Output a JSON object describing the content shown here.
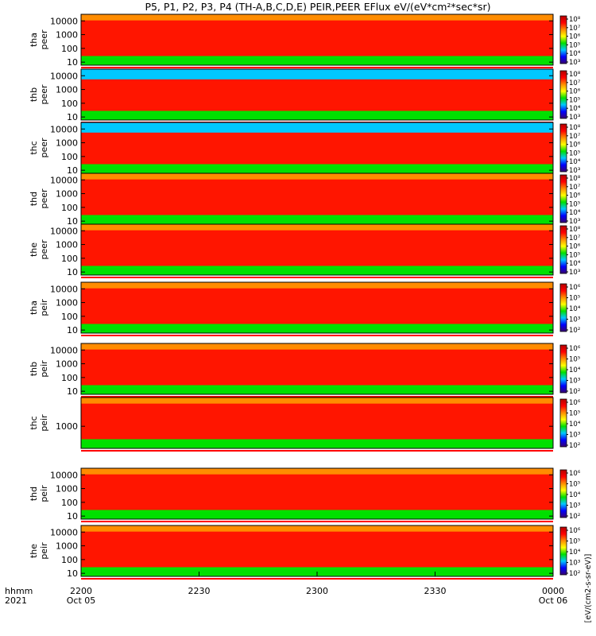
{
  "title": "P5, P1, P2, P3, P4 (TH-A,B,C,D,E) PEIR,PEER EFlux eV/(eV*cm²*sec*sr)",
  "time_axis": {
    "row_label_1": "hhmm",
    "row_label_2": "2021",
    "ticks": [
      {
        "t": 0,
        "hhmm": "2200",
        "date": "Oct 05"
      },
      {
        "t": 30,
        "hhmm": "2230",
        "date": ""
      },
      {
        "t": 60,
        "hhmm": "2300",
        "date": ""
      },
      {
        "t": 90,
        "hhmm": "2330",
        "date": ""
      },
      {
        "t": 120,
        "hhmm": "0000",
        "date": "Oct 06"
      }
    ]
  },
  "colorbar_unit_label": "[eV/(cm2-s-sr-eV)]",
  "colors": {
    "scale": [
      "#3a006f",
      "#0000ff",
      "#00c8ff",
      "#00e000",
      "#ffff00",
      "#ff8c00",
      "#ff0000",
      "#b40000"
    ],
    "fill_gap": "#ffffff",
    "strip": "#ff0000"
  },
  "chart_data": {
    "type": "heatmap",
    "x_units": "minutes from 2021-10-05 22:00 UT",
    "xlim": [
      0,
      120
    ],
    "y_scale": "log",
    "panels": [
      {
        "id": "tha_peer",
        "probe": "tha",
        "instrument": "peer",
        "ylim": [
          6,
          30000
        ],
        "yticks": [
          "10000",
          "1000",
          "100",
          "10"
        ],
        "cbar_ticks": [
          "10⁸",
          "10⁷",
          "10⁶",
          "10⁵",
          "10⁴",
          "10³"
        ],
        "level_band_low": 5.6,
        "level_band_high": 7.4,
        "top_noise": false
      },
      {
        "id": "thb_peer",
        "probe": "thb",
        "instrument": "peer",
        "ylim": [
          6,
          30000
        ],
        "yticks": [
          "10000",
          "1000",
          "100",
          "10"
        ],
        "cbar_ticks": [
          "10⁸",
          "10⁷",
          "10⁶",
          "10⁵",
          "10⁴",
          "10³"
        ],
        "level_band_low": 3.0,
        "level_band_high": 7.6,
        "top_noise": true
      },
      {
        "id": "thc_peer",
        "probe": "thc",
        "instrument": "peer",
        "ylim": [
          6,
          30000
        ],
        "yticks": [
          "10000",
          "1000",
          "100",
          "10"
        ],
        "cbar_ticks": [
          "10⁸",
          "10⁷",
          "10⁶",
          "10⁵",
          "10⁴",
          "10³"
        ],
        "level_band_low": 2.6,
        "level_band_high": 7.6,
        "top_noise": true
      },
      {
        "id": "thd_peer",
        "probe": "thd",
        "instrument": "peer",
        "ylim": [
          6,
          30000
        ],
        "yticks": [
          "10000",
          "1000",
          "100",
          "10"
        ],
        "cbar_ticks": [
          "10⁸",
          "10⁷",
          "10⁶",
          "10⁵",
          "10⁴",
          "10³"
        ],
        "level_band_low": 5.8,
        "level_band_high": 7.6,
        "top_noise": false
      },
      {
        "id": "the_peer",
        "probe": "the",
        "instrument": "peer",
        "ylim": [
          6,
          30000
        ],
        "yticks": [
          "10000",
          "1000",
          "100",
          "10"
        ],
        "cbar_ticks": [
          "10⁸",
          "10⁷",
          "10⁶",
          "10⁵",
          "10⁴",
          "10³"
        ],
        "level_band_low": 5.6,
        "level_band_high": 7.4,
        "top_noise": false
      },
      {
        "id": "tha_peir",
        "probe": "tha",
        "instrument": "peir",
        "ylim": [
          6,
          30000
        ],
        "yticks": [
          "10000",
          "1000",
          "100",
          "10"
        ],
        "cbar_ticks": [
          "10⁶",
          "10⁵",
          "10⁴",
          "10³",
          "10²"
        ],
        "level_band_low": 2.4,
        "level_band_high": 5.6,
        "top_noise": false
      },
      {
        "id": "thb_peir",
        "probe": "thb",
        "instrument": "peir",
        "ylim": [
          6,
          30000
        ],
        "yticks": [
          "10000",
          "1000",
          "100",
          "10"
        ],
        "cbar_ticks": [
          "10⁶",
          "10⁵",
          "10⁴",
          "10³",
          "10²"
        ],
        "level_band_low": 3.0,
        "level_band_high": 6.0,
        "top_noise": false
      },
      {
        "id": "thc_peir",
        "probe": "thc",
        "instrument": "peir",
        "ylim": [
          100,
          20000
        ],
        "yticks": [
          "1000"
        ],
        "cbar_ticks": [
          "10⁶",
          "10⁵",
          "10⁴",
          "10³",
          "10²"
        ],
        "level_band_low": 3.0,
        "level_band_high": 6.0,
        "top_noise": false
      },
      {
        "id": "thd_peir",
        "probe": "thd",
        "instrument": "peir",
        "ylim": [
          6,
          30000
        ],
        "yticks": [
          "10000",
          "1000",
          "100",
          "10"
        ],
        "cbar_ticks": [
          "10⁶",
          "10⁵",
          "10⁴",
          "10³",
          "10²"
        ],
        "level_band_low": 2.4,
        "level_band_high": 5.4,
        "top_noise": false
      },
      {
        "id": "the_peir",
        "probe": "the",
        "instrument": "peir",
        "ylim": [
          6,
          30000
        ],
        "yticks": [
          "10000",
          "1000",
          "100",
          "10"
        ],
        "cbar_ticks": [
          "10⁶",
          "10⁵",
          "10⁴",
          "10³",
          "10²"
        ],
        "level_band_low": 2.4,
        "level_band_high": 5.6,
        "top_noise": false
      }
    ]
  }
}
